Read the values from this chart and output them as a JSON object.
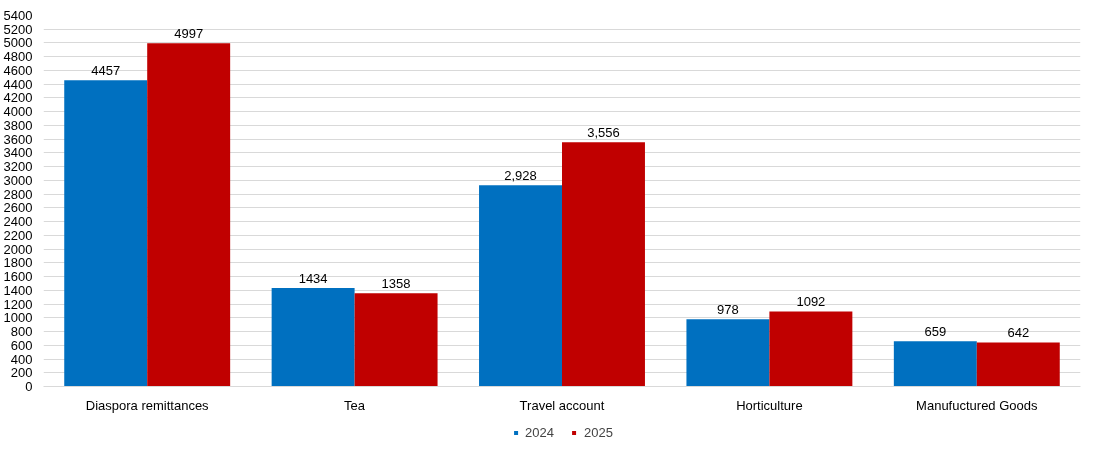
{
  "chart_data": {
    "type": "bar",
    "categories": [
      "Diaspora remittances",
      "Tea",
      "Travel account",
      "Horticulture",
      "Manufuctured Goods"
    ],
    "series": [
      {
        "name": "2024",
        "color": "#0070c0",
        "values": [
          4457,
          1434,
          2928,
          978,
          659
        ],
        "value_labels": [
          "4457",
          "1434",
          "2,928",
          "978",
          "659"
        ]
      },
      {
        "name": "2025",
        "color": "#c00000",
        "values": [
          4997,
          1358,
          3556,
          1092,
          642
        ],
        "value_labels": [
          "4997",
          "1358",
          "3,556",
          "1092",
          "642"
        ]
      }
    ],
    "ylim": [
      0,
      5400
    ],
    "yticks": [
      0,
      200,
      400,
      600,
      800,
      1000,
      1200,
      1400,
      1600,
      1800,
      2000,
      2200,
      2400,
      2600,
      2800,
      3000,
      3200,
      3400,
      3600,
      3800,
      4000,
      4200,
      4400,
      4600,
      4800,
      5000,
      5200,
      5400
    ],
    "grid": "y",
    "legend": "bottom"
  }
}
